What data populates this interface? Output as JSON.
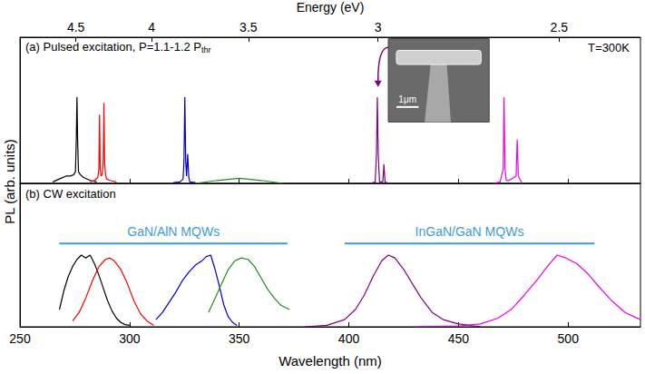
{
  "chart_data": [
    {
      "type": "line",
      "title": "(a) Pulsed excitation, P=1.1-1.2 P",
      "title_subscript": "thr",
      "ylabel": "PL (arb. units)",
      "x2label": "Energy (eV)",
      "x2ticks": [
        {
          "value": 275.5,
          "label": "4.5"
        },
        {
          "value": 310.0,
          "label": "4"
        },
        {
          "value": 354.2,
          "label": "3.5"
        },
        {
          "value": 413.3,
          "label": "3"
        },
        {
          "value": 495.9,
          "label": "2.5"
        }
      ],
      "xlim": [
        250,
        533
      ],
      "xticks": [
        250,
        300,
        350,
        400,
        450,
        500
      ],
      "ylim": [
        0,
        1
      ],
      "tick_labels": "x",
      "grid": false,
      "annotations": [
        {
          "text": "T=300K"
        }
      ],
      "inset": {
        "scale_label": "1μm"
      },
      "series": [
        {
          "color": "#000000",
          "x": [
            265,
            268,
            271,
            273,
            274.5,
            275.3,
            275.7,
            276,
            276.3,
            276.7,
            277.5,
            279,
            282,
            285
          ],
          "values": [
            0.01,
            0.03,
            0.05,
            0.05,
            0.06,
            0.08,
            0.3,
            0.59,
            0.3,
            0.08,
            0.06,
            0.04,
            0.02,
            0.01
          ]
        },
        {
          "color": "#ff0000",
          "x": [
            282,
            284,
            285.5,
            286,
            286.3,
            286.6,
            287,
            287.5,
            288,
            288.3,
            288.6,
            289,
            289.5,
            291,
            294
          ],
          "values": [
            0.01,
            0.02,
            0.04,
            0.1,
            0.47,
            0.1,
            0.05,
            0.06,
            0.15,
            0.55,
            0.15,
            0.06,
            0.03,
            0.02,
            0.01
          ]
        },
        {
          "color": "#0000cc",
          "x": [
            320,
            323,
            324.4,
            324.8,
            325.2,
            325.6,
            326,
            326.5,
            327,
            327.5,
            330
          ],
          "values": [
            0.005,
            0.01,
            0.03,
            0.15,
            0.59,
            0.15,
            0.05,
            0.2,
            0.04,
            0.01,
            0.005
          ]
        },
        {
          "color": "#228b22",
          "x": [
            330,
            340,
            350,
            360,
            370
          ],
          "values": [
            0.0,
            0.02,
            0.035,
            0.02,
            0.0
          ]
        },
        {
          "color": "#800080",
          "x": [
            410,
            412,
            412.6,
            413,
            413.4,
            414,
            415.5,
            416,
            416.5,
            418
          ],
          "values": [
            0,
            0.01,
            0.2,
            0.59,
            0.2,
            0.01,
            0.01,
            0.13,
            0.01,
            0
          ]
        },
        {
          "color": "#ee00ee",
          "x": [
            466,
            469,
            470.4,
            470.8,
            471.2,
            471.8,
            473,
            476.3,
            476.8,
            477.3,
            479
          ],
          "values": [
            0,
            0.01,
            0.1,
            0.59,
            0.1,
            0.02,
            0.02,
            0.05,
            0.3,
            0.05,
            0
          ]
        }
      ]
    },
    {
      "type": "line",
      "title": "(b) CW excitation",
      "xlabel": "Wavelength (nm)",
      "xlim": [
        250,
        533
      ],
      "xticks": [
        250,
        300,
        350,
        400,
        450,
        500
      ],
      "ylim": [
        0,
        1
      ],
      "tick_labels": "x",
      "grid": false,
      "annotations": [
        {
          "text": "GaN/AlN MQWs",
          "x": [
            268,
            372
          ],
          "y": 0.58,
          "color": "#3d9bd6"
        },
        {
          "text": "InGaN/GaN MQWs",
          "x": [
            398,
            512
          ],
          "y": 0.58,
          "color": "#3d9bd6"
        }
      ],
      "series": [
        {
          "color": "#000000",
          "x": [
            268,
            270,
            272,
            274,
            276,
            278,
            280,
            282,
            284,
            286,
            288,
            290,
            292,
            294,
            296,
            298,
            300
          ],
          "values": [
            0.12,
            0.25,
            0.35,
            0.42,
            0.47,
            0.5,
            0.48,
            0.5,
            0.44,
            0.36,
            0.27,
            0.18,
            0.11,
            0.06,
            0.03,
            0.015,
            0.01
          ]
        },
        {
          "color": "#ff0000",
          "x": [
            274,
            277,
            280,
            283,
            286,
            289,
            291,
            293,
            296,
            299,
            302,
            305,
            308,
            311
          ],
          "values": [
            0.04,
            0.1,
            0.2,
            0.32,
            0.42,
            0.47,
            0.48,
            0.46,
            0.4,
            0.3,
            0.18,
            0.09,
            0.04,
            0.01
          ]
        },
        {
          "color": "#0000cc",
          "x": [
            312,
            315,
            318,
            321,
            324,
            327,
            330,
            333,
            335,
            337,
            339,
            341,
            343,
            345,
            347,
            349
          ],
          "values": [
            0.05,
            0.1,
            0.17,
            0.24,
            0.32,
            0.38,
            0.43,
            0.46,
            0.49,
            0.5,
            0.4,
            0.28,
            0.15,
            0.07,
            0.03,
            0.01
          ]
        },
        {
          "color": "#228b22",
          "x": [
            336,
            339,
            342,
            345,
            348,
            351,
            354,
            357,
            360,
            363,
            366,
            369,
            373
          ],
          "values": [
            0.1,
            0.2,
            0.3,
            0.4,
            0.46,
            0.48,
            0.47,
            0.42,
            0.34,
            0.26,
            0.2,
            0.15,
            0.12
          ]
        },
        {
          "color": "#800080",
          "x": [
            380,
            390,
            398,
            403,
            407,
            411,
            415,
            418,
            421,
            425,
            429,
            433,
            438,
            443,
            450,
            460
          ],
          "values": [
            0,
            0.01,
            0.05,
            0.12,
            0.22,
            0.35,
            0.46,
            0.5,
            0.48,
            0.4,
            0.3,
            0.2,
            0.1,
            0.05,
            0.02,
            0
          ]
        },
        {
          "color": "#ee00ee",
          "x": [
            430,
            450,
            460,
            468,
            474,
            480,
            486,
            491,
            495,
            499,
            504,
            509,
            514,
            520,
            526,
            533
          ],
          "values": [
            0,
            0.005,
            0.02,
            0.06,
            0.12,
            0.22,
            0.33,
            0.43,
            0.5,
            0.48,
            0.44,
            0.37,
            0.28,
            0.18,
            0.1,
            0.05
          ]
        }
      ]
    }
  ]
}
